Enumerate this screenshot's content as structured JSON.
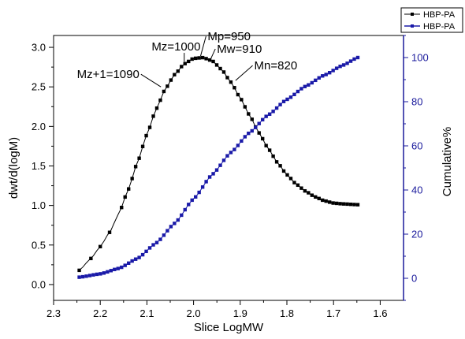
{
  "chart_data": {
    "type": "line",
    "xlabel": "Slice LogMW",
    "xlim": [
      2.3,
      1.55
    ],
    "x_ticks": [
      "2.3",
      "2.2",
      "2.1",
      "2.0",
      "1.9",
      "1.8",
      "1.7",
      "1.6"
    ],
    "x_reversed": true,
    "y_left": {
      "label": "dwt/d(logM)",
      "ylim": [
        -0.2,
        3.15
      ],
      "ticks": [
        "0.0",
        "0.5",
        "1.0",
        "1.5",
        "2.0",
        "2.5",
        "3.0"
      ],
      "color": "#000000"
    },
    "y_right": {
      "label": "Cumulative%",
      "ylim": [
        -10,
        110
      ],
      "ticks": [
        "0",
        "20",
        "40",
        "60",
        "80",
        "100"
      ],
      "color": "#1a1a9c"
    },
    "legend": {
      "placement": "top-right-outside",
      "entries": [
        {
          "label": "HBP-PA",
          "color": "#000000"
        },
        {
          "label": "HBP-PA",
          "color": "#1a1aa8"
        }
      ]
    },
    "series": [
      {
        "name": "HBP-PA",
        "axis": "left",
        "color": "#000000",
        "markers_from": 2.16,
        "x_start": 2.245,
        "x_end": 1.648,
        "points": 80,
        "anchors": [
          [
            2.245,
            0.18
          ],
          [
            2.22,
            0.33
          ],
          [
            2.2,
            0.48
          ],
          [
            2.18,
            0.66
          ],
          [
            2.16,
            0.9
          ],
          [
            2.14,
            1.2
          ],
          [
            2.12,
            1.55
          ],
          [
            2.1,
            1.9
          ],
          [
            2.08,
            2.22
          ],
          [
            2.06,
            2.48
          ],
          [
            2.04,
            2.66
          ],
          [
            2.02,
            2.79
          ],
          [
            2.0,
            2.86
          ],
          [
            1.98,
            2.87
          ],
          [
            1.96,
            2.83
          ],
          [
            1.94,
            2.72
          ],
          [
            1.92,
            2.56
          ],
          [
            1.9,
            2.36
          ],
          [
            1.88,
            2.14
          ],
          [
            1.86,
            1.92
          ],
          [
            1.84,
            1.72
          ],
          [
            1.82,
            1.54
          ],
          [
            1.8,
            1.39
          ],
          [
            1.78,
            1.27
          ],
          [
            1.76,
            1.18
          ],
          [
            1.74,
            1.11
          ],
          [
            1.72,
            1.06
          ],
          [
            1.7,
            1.03
          ],
          [
            1.68,
            1.02
          ],
          [
            1.648,
            1.01
          ]
        ]
      },
      {
        "name": "HBP-PA",
        "axis": "right",
        "color": "#1a1aa8",
        "markers_from": 2.3,
        "x_start": 2.245,
        "x_end": 1.648,
        "points": 80,
        "anchors": [
          [
            2.245,
            0.5
          ],
          [
            2.2,
            2.0
          ],
          [
            2.16,
            4.5
          ],
          [
            2.12,
            9.0
          ],
          [
            2.08,
            16.0
          ],
          [
            2.04,
            25.0
          ],
          [
            2.0,
            36.0
          ],
          [
            1.96,
            47.0
          ],
          [
            1.92,
            57.0
          ],
          [
            1.88,
            66.0
          ],
          [
            1.84,
            74.0
          ],
          [
            1.8,
            81.0
          ],
          [
            1.76,
            87.0
          ],
          [
            1.72,
            92.0
          ],
          [
            1.68,
            96.5
          ],
          [
            1.648,
            100.0
          ]
        ]
      }
    ],
    "annotations": [
      {
        "text": "Mz=1000",
        "label_x": 2.09,
        "label_y": 2.96,
        "target_x": 2.02,
        "target_y": 2.82
      },
      {
        "text": "Mp=950",
        "label_x": 1.97,
        "label_y": 3.09,
        "target_x": 1.985,
        "target_y": 2.89
      },
      {
        "text": "Mw=910",
        "label_x": 1.95,
        "label_y": 2.93,
        "target_x": 1.965,
        "target_y": 2.83
      },
      {
        "text": "Mz+1=1090",
        "label_x": 2.25,
        "label_y": 2.61,
        "target_x": 2.07,
        "target_y": 2.5
      },
      {
        "text": "Mn=820",
        "label_x": 1.87,
        "label_y": 2.72,
        "target_x": 1.91,
        "target_y": 2.58
      }
    ]
  }
}
